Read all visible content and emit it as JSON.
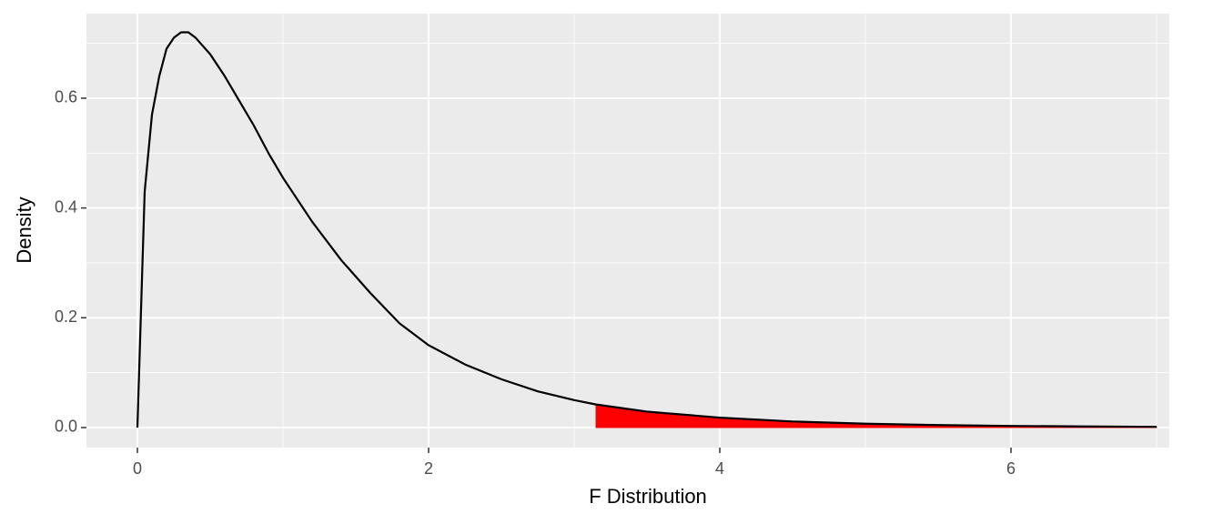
{
  "chart_data": {
    "type": "line",
    "x_label": "F Distribution",
    "y_label": "Density",
    "x": [
      0,
      0.05,
      0.1,
      0.15,
      0.2,
      0.25,
      0.3,
      0.35,
      0.4,
      0.5,
      0.6,
      0.7,
      0.8,
      0.9,
      1.0,
      1.2,
      1.4,
      1.6,
      1.8,
      2.0,
      2.25,
      2.5,
      2.75,
      3.0,
      3.15,
      3.5,
      4,
      4.5,
      5,
      5.5,
      6,
      6.5,
      7
    ],
    "values": [
      0,
      0.43,
      0.57,
      0.64,
      0.69,
      0.71,
      0.72,
      0.72,
      0.71,
      0.68,
      0.64,
      0.595,
      0.55,
      0.5,
      0.455,
      0.375,
      0.305,
      0.245,
      0.19,
      0.15,
      0.115,
      0.088,
      0.066,
      0.05,
      0.042,
      0.029,
      0.018,
      0.011,
      0.007,
      0.0045,
      0.003,
      0.002,
      0.0013
    ],
    "color": "#000000",
    "shade": {
      "x": [
        3.15,
        3.5,
        4,
        4.5,
        5,
        5.5,
        6,
        6.5,
        7
      ],
      "values": [
        0.042,
        0.029,
        0.018,
        0.011,
        0.007,
        0.0045,
        0.003,
        0.002,
        0.0013
      ],
      "color": "#ff0000"
    },
    "xlim": [
      -0.35,
      7.0875
    ],
    "ylim": [
      -0.0365,
      0.754
    ],
    "xticks": [
      0,
      2,
      4,
      6
    ],
    "yticks": [
      {
        "value": 0,
        "label": "0.0"
      },
      0.2,
      0.4,
      0.6
    ],
    "minor_xticks": [
      1,
      3,
      5,
      7
    ],
    "minor_yticks": [
      0.1,
      0.3,
      0.5,
      0.7
    ],
    "grid": true
  }
}
